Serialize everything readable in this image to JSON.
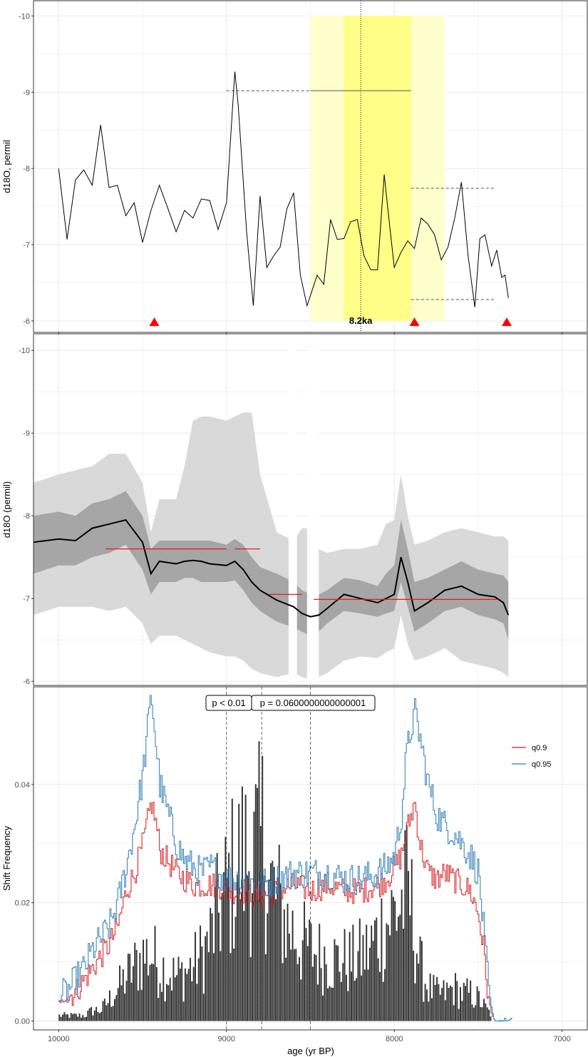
{
  "colors": {
    "panel_border": "#333333",
    "grid": "#ebebeb",
    "highlight_outer": "#ffffcc",
    "highlight_inner": "#ffff88",
    "ribbon_outer": "#d9d9d9",
    "ribbon_inner": "#a6a6a6",
    "median_line": "#000000",
    "shift_segment": "#e41a1c",
    "q09": "#d7191c",
    "q095": "#2c7bb6",
    "histogram": "#333333",
    "triangle": "#ff0000"
  },
  "x_axis": {
    "title": "age (yr BP)",
    "range": [
      10150,
      6850
    ],
    "reversed": true,
    "ticks": [
      10000,
      9000,
      8000,
      7000
    ],
    "tick_labels": [
      "10000",
      "9000",
      "8000",
      "7000"
    ]
  },
  "chart_data": [
    {
      "type": "line",
      "panel": "top",
      "ylabel": "d18O, permil",
      "y_reversed": true,
      "ylim": [
        -10.2,
        -5.85
      ],
      "y_ticks": [
        -10,
        -9,
        -8,
        -7,
        -6
      ],
      "y_tick_labels": [
        "-10",
        "-9",
        "-8",
        "-7",
        "-6"
      ],
      "series": [
        {
          "x": [
            10000,
            9950,
            9900,
            9850,
            9800,
            9750,
            9700,
            9650,
            9600,
            9550,
            9500,
            9450,
            9400,
            9350,
            9300,
            9250,
            9200,
            9150,
            9100,
            9050,
            9000,
            8950,
            8930,
            8880,
            8840,
            8800,
            8760,
            8720,
            8680,
            8640,
            8600,
            8560,
            8520,
            8490,
            8460,
            8420,
            8380,
            8340,
            8300,
            8260,
            8220,
            8180,
            8140,
            8100,
            8060,
            8040,
            8000,
            7960,
            7920,
            7880,
            7840,
            7800,
            7760,
            7720,
            7680,
            7640,
            7600,
            7560,
            7520,
            7490,
            7460,
            7420,
            7390,
            7360,
            7340,
            7320
          ],
          "y": [
            -8.0,
            -7.07,
            -7.85,
            -7.98,
            -7.78,
            -8.57,
            -7.75,
            -7.78,
            -7.38,
            -7.55,
            -7.03,
            -7.45,
            -7.78,
            -7.48,
            -7.17,
            -7.45,
            -7.35,
            -7.6,
            -7.58,
            -7.2,
            -7.55,
            -9.27,
            -8.82,
            -7.17,
            -6.2,
            -7.64,
            -6.7,
            -6.85,
            -6.97,
            -7.47,
            -7.68,
            -6.6,
            -6.2,
            -6.4,
            -6.6,
            -6.48,
            -7.33,
            -7.07,
            -7.08,
            -7.3,
            -7.33,
            -6.85,
            -6.67,
            -6.67,
            -7.92,
            -7.5,
            -6.7,
            -6.9,
            -7.05,
            -6.95,
            -7.35,
            -7.27,
            -7.13,
            -6.8,
            -6.97,
            -7.35,
            -7.82,
            -6.85,
            -6.18,
            -7.08,
            -7.13,
            -6.72,
            -6.93,
            -6.57,
            -6.6,
            -6.3
          ]
        }
      ],
      "highlight": {
        "outer": [
          8500,
          7700
        ],
        "inner": [
          8300,
          7900
        ],
        "center": 8200,
        "label": "8.2ka"
      },
      "reference_lines": [
        {
          "x": [
            9000,
            8500
          ],
          "y": -9.02,
          "style": "dashed"
        },
        {
          "x": [
            8500,
            7900
          ],
          "y": -9.02,
          "style": "solid"
        },
        {
          "x": [
            7900,
            7400
          ],
          "y": -7.74,
          "style": "dashed"
        },
        {
          "x": [
            7900,
            7400
          ],
          "y": -6.28,
          "style": "dashed"
        }
      ],
      "markers": {
        "shape": "triangle",
        "x": [
          9430,
          7880,
          7330
        ],
        "y": -5.98
      }
    },
    {
      "type": "area",
      "panel": "middle",
      "ylabel": "d18O (permil)",
      "y_reversed": true,
      "ylim": [
        -10.2,
        -5.95
      ],
      "y_ticks": [
        -10,
        -9,
        -8,
        -7,
        -6
      ],
      "y_tick_labels": [
        "-10",
        "-9",
        "-8",
        "-7",
        "-6"
      ],
      "x": [
        10150,
        10000,
        9900,
        9800,
        9700,
        9600,
        9500,
        9450,
        9400,
        9300,
        9250,
        9200,
        9150,
        9100,
        9000,
        8950,
        8900,
        8850,
        8800,
        8700,
        8600,
        8550,
        8500,
        8450,
        8400,
        8300,
        8200,
        8100,
        8050,
        8000,
        7960,
        7920,
        7880,
        7800,
        7700,
        7600,
        7500,
        7400,
        7350,
        7320
      ],
      "median": [
        -7.68,
        -7.72,
        -7.7,
        -7.85,
        -7.9,
        -7.95,
        -7.68,
        -7.3,
        -7.45,
        -7.42,
        -7.45,
        -7.46,
        -7.45,
        -7.42,
        -7.4,
        -7.45,
        -7.35,
        -7.2,
        -7.1,
        -6.98,
        -6.9,
        -6.82,
        -6.78,
        -6.8,
        -6.88,
        -7.05,
        -7.0,
        -6.95,
        -7.0,
        -7.05,
        -7.5,
        -7.2,
        -6.85,
        -6.95,
        -7.1,
        -7.15,
        -7.05,
        -7.02,
        -6.95,
        -6.8
      ],
      "inner_lower": [
        -7.3,
        -7.4,
        -7.4,
        -7.5,
        -7.55,
        -7.65,
        -7.35,
        -7.05,
        -7.2,
        -7.2,
        -7.25,
        -7.25,
        -7.2,
        -7.2,
        -7.2,
        -7.22,
        -7.1,
        -6.95,
        -6.85,
        -6.72,
        -6.65,
        -6.6,
        -6.55,
        -6.6,
        -6.7,
        -6.85,
        -6.82,
        -6.78,
        -6.82,
        -6.85,
        -7.2,
        -6.9,
        -6.6,
        -6.7,
        -6.85,
        -6.9,
        -6.8,
        -6.75,
        -6.7,
        -6.5
      ],
      "inner_upper": [
        -8.0,
        -8.05,
        -8.0,
        -8.15,
        -8.2,
        -8.3,
        -8.0,
        -7.6,
        -7.7,
        -7.7,
        -7.7,
        -7.7,
        -7.7,
        -7.7,
        -7.65,
        -7.72,
        -7.65,
        -7.5,
        -7.38,
        -7.3,
        -7.2,
        -7.1,
        -7.05,
        -7.05,
        -7.1,
        -7.25,
        -7.22,
        -7.15,
        -7.3,
        -7.4,
        -7.95,
        -7.6,
        -7.2,
        -7.25,
        -7.35,
        -7.45,
        -7.35,
        -7.3,
        -7.28,
        -7.2
      ],
      "outer_lower": [
        -6.8,
        -6.9,
        -6.9,
        -6.9,
        -6.85,
        -6.9,
        -6.7,
        -6.45,
        -6.55,
        -6.55,
        -6.5,
        -6.45,
        -6.4,
        -6.35,
        -6.3,
        -6.3,
        -6.25,
        -6.15,
        -6.1,
        -6.05,
        -6.1,
        -6.05,
        -6.02,
        -6.05,
        -6.1,
        -6.25,
        -6.3,
        -6.28,
        -6.35,
        -6.4,
        -6.8,
        -6.45,
        -6.25,
        -6.3,
        -6.4,
        -6.25,
        -6.2,
        -6.15,
        -6.1,
        -6.05
      ],
      "outer_upper": [
        -8.4,
        -8.5,
        -8.55,
        -8.6,
        -8.75,
        -8.75,
        -8.4,
        -7.8,
        -8.2,
        -8.2,
        -8.6,
        -9.15,
        -9.2,
        -9.2,
        -9.15,
        -9.2,
        -9.25,
        -9.25,
        -8.5,
        -7.8,
        -7.7,
        -7.85,
        -7.85,
        -7.6,
        -7.55,
        -7.6,
        -7.6,
        -7.65,
        -7.9,
        -7.95,
        -8.5,
        -8.0,
        -7.65,
        -7.7,
        -7.8,
        -7.85,
        -7.8,
        -7.75,
        -7.75,
        -7.7
      ],
      "gaps": [
        [
          8630,
          8580
        ],
        [
          8520,
          8450
        ]
      ],
      "shift_segments": [
        {
          "x": [
            9720,
            9000
          ],
          "y": -7.6
        },
        {
          "x": [
            8950,
            8800
          ],
          "y": -7.6
        },
        {
          "x": [
            8750,
            8550
          ],
          "y": -7.05
        },
        {
          "x": [
            8480,
            7380
          ],
          "y": -6.99
        }
      ]
    },
    {
      "type": "bar",
      "panel": "bottom",
      "ylabel": "Shift Frequency",
      "ylim": [
        -0.0015,
        0.0565
      ],
      "y_ticks": [
        0.0,
        0.02,
        0.04
      ],
      "y_tick_labels": [
        "0.00",
        "0.02",
        "0.04"
      ],
      "x_range": [
        10000,
        7420
      ],
      "bin_width": 10,
      "histogram_anchors": {
        "x": [
          10000,
          9950,
          9900,
          9850,
          9800,
          9750,
          9700,
          9650,
          9600,
          9550,
          9500,
          9450,
          9400,
          9350,
          9300,
          9250,
          9200,
          9150,
          9100,
          9050,
          9000,
          8950,
          8900,
          8850,
          8800,
          8780,
          8750,
          8700,
          8650,
          8600,
          8550,
          8500,
          8450,
          8400,
          8350,
          8300,
          8250,
          8200,
          8150,
          8100,
          8050,
          8000,
          7950,
          7920,
          7900,
          7850,
          7800,
          7750,
          7700,
          7650,
          7600,
          7550,
          7500,
          7450,
          7420
        ],
        "y": [
          0.001,
          0.001,
          0.001,
          0.001,
          0.002,
          0.002,
          0.004,
          0.006,
          0.008,
          0.01,
          0.012,
          0.012,
          0.01,
          0.009,
          0.008,
          0.009,
          0.01,
          0.012,
          0.015,
          0.02,
          0.024,
          0.028,
          0.03,
          0.03,
          0.032,
          0.035,
          0.025,
          0.022,
          0.018,
          0.016,
          0.014,
          0.013,
          0.012,
          0.012,
          0.011,
          0.011,
          0.011,
          0.012,
          0.013,
          0.016,
          0.018,
          0.02,
          0.022,
          0.024,
          0.02,
          0.01,
          0.006,
          0.005,
          0.005,
          0.006,
          0.005,
          0.005,
          0.004,
          0.002,
          0.001
        ]
      },
      "series": [
        {
          "name": "q0.9",
          "x": [
            10000,
            9950,
            9900,
            9850,
            9800,
            9750,
            9700,
            9650,
            9600,
            9550,
            9500,
            9470,
            9450,
            9420,
            9400,
            9350,
            9300,
            9250,
            9200,
            9150,
            9100,
            9050,
            9000,
            8900,
            8800,
            8700,
            8600,
            8500,
            8400,
            8300,
            8200,
            8100,
            8050,
            8000,
            7960,
            7930,
            7900,
            7880,
            7850,
            7800,
            7750,
            7700,
            7650,
            7600,
            7550,
            7500,
            7470,
            7450,
            7430,
            7410
          ],
          "y": [
            0.003,
            0.004,
            0.005,
            0.007,
            0.009,
            0.011,
            0.013,
            0.016,
            0.022,
            0.025,
            0.03,
            0.034,
            0.037,
            0.033,
            0.029,
            0.027,
            0.025,
            0.024,
            0.023,
            0.023,
            0.023,
            0.023,
            0.022,
            0.022,
            0.021,
            0.022,
            0.023,
            0.022,
            0.023,
            0.022,
            0.022,
            0.023,
            0.024,
            0.026,
            0.028,
            0.032,
            0.035,
            0.037,
            0.03,
            0.025,
            0.024,
            0.025,
            0.024,
            0.023,
            0.022,
            0.018,
            0.012,
            0.006,
            0.002,
            0.0
          ]
        },
        {
          "name": "q0.95",
          "x": [
            10000,
            9950,
            9900,
            9850,
            9800,
            9750,
            9700,
            9650,
            9600,
            9550,
            9500,
            9470,
            9450,
            9420,
            9400,
            9350,
            9300,
            9250,
            9200,
            9150,
            9100,
            9050,
            9000,
            8900,
            8800,
            8700,
            8600,
            8500,
            8400,
            8300,
            8200,
            8100,
            8050,
            8000,
            7960,
            7930,
            7900,
            7880,
            7850,
            7800,
            7750,
            7700,
            7650,
            7600,
            7550,
            7500,
            7470,
            7450,
            7430,
            7410,
            7300
          ],
          "y": [
            0.004,
            0.005,
            0.007,
            0.009,
            0.012,
            0.014,
            0.016,
            0.02,
            0.026,
            0.033,
            0.042,
            0.05,
            0.055,
            0.046,
            0.04,
            0.035,
            0.03,
            0.027,
            0.026,
            0.025,
            0.026,
            0.025,
            0.024,
            0.024,
            0.023,
            0.024,
            0.025,
            0.025,
            0.025,
            0.024,
            0.024,
            0.025,
            0.026,
            0.028,
            0.035,
            0.045,
            0.05,
            0.052,
            0.048,
            0.04,
            0.035,
            0.033,
            0.032,
            0.03,
            0.028,
            0.025,
            0.015,
            0.008,
            0.003,
            0.0,
            0.0
          ]
        }
      ],
      "vlines": [
        9000,
        8790,
        8500
      ],
      "p_labels": [
        {
          "text": "p < 0.01",
          "x": 9000
        },
        {
          "text": "p = 0.0600000000000001",
          "x": 8790
        }
      ],
      "legend": {
        "position": "top-right",
        "entries": [
          "q0.9",
          "q0.95"
        ]
      }
    }
  ]
}
